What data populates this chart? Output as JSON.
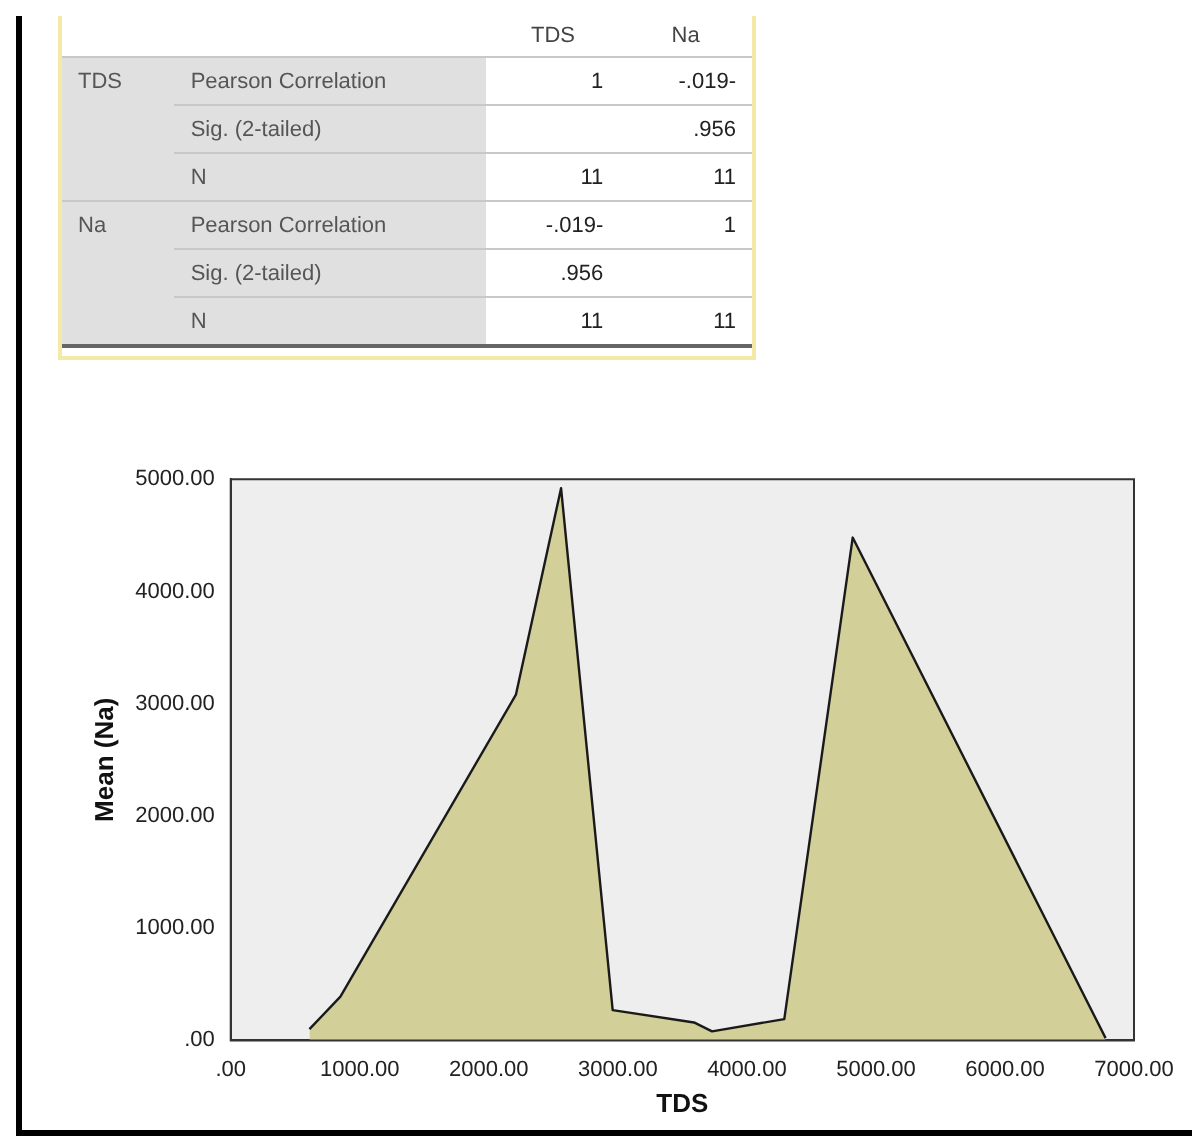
{
  "chart_data": [
    {
      "type": "other",
      "categories": [
        null,
        null,
        "TDS",
        "Na"
      ],
      "cell_labels": [
        [
          "TDS",
          "Pearson Correlation",
          "1",
          "-.019-"
        ],
        [
          null,
          "Sig. (2-tailed)",
          null,
          ".956"
        ],
        [
          null,
          "N",
          "11",
          "11"
        ],
        [
          "Na",
          "Pearson Correlation",
          "-.019-",
          "1"
        ],
        [
          null,
          "Sig. (2-tailed)",
          ".956",
          null
        ],
        [
          null,
          "N",
          "11",
          "11"
        ]
      ]
    },
    {
      "type": "area",
      "xlabel": "TDS",
      "ylabel": "Mean (Na)",
      "x": [
        610,
        850,
        2210,
        2560,
        2960,
        3590,
        3730,
        4290,
        4820,
        6780
      ],
      "series": [
        {
          "color": "#d3cf98",
          "values": [
            100,
            390,
            3080,
            4920,
            270,
            160,
            80,
            190,
            4480,
            20
          ]
        }
      ],
      "xlim": [
        0,
        7000
      ],
      "xticks": [
        {
          "value": 0,
          "label": ".00"
        },
        {
          "value": 1000,
          "label": "1000.00"
        },
        {
          "value": 2000,
          "label": "2000.00"
        },
        {
          "value": 3000,
          "label": "3000.00"
        },
        {
          "value": 4000,
          "label": "4000.00"
        },
        {
          "value": 5000,
          "label": "5000.00"
        },
        {
          "value": 6000,
          "label": "6000.00"
        },
        {
          "value": 7000,
          "label": "7000.00"
        }
      ],
      "ylim": [
        0,
        5000
      ],
      "yticks": [
        {
          "value": 0,
          "label": ".00"
        },
        {
          "value": 1000,
          "label": "1000.00"
        },
        {
          "value": 2000,
          "label": "2000.00"
        },
        {
          "value": 3000,
          "label": "3000.00"
        },
        {
          "value": 4000,
          "label": "4000.00"
        },
        {
          "value": 5000,
          "label": "5000.00"
        }
      ],
      "grid": false,
      "legend": false
    }
  ]
}
